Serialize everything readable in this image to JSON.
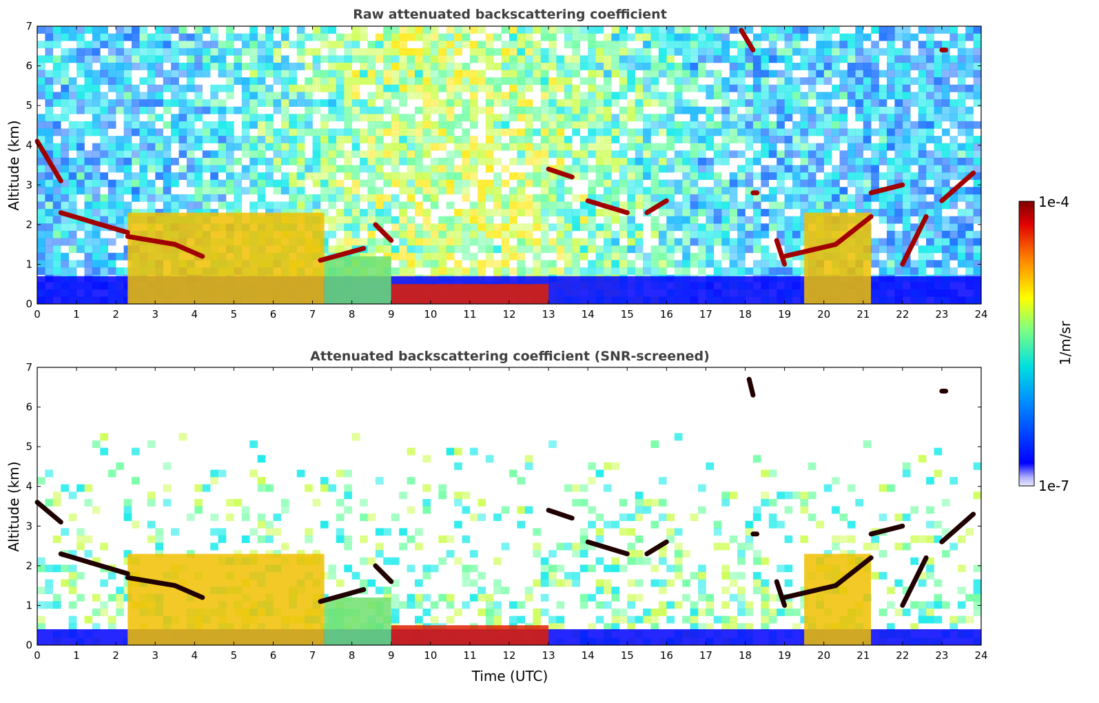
{
  "chart_data": [
    {
      "type": "heatmap",
      "title": "Raw attenuated backscattering coefficient",
      "xlabel": "",
      "ylabel": "Altitude (km)",
      "xlim": [
        0,
        24
      ],
      "ylim": [
        0,
        7
      ],
      "x_ticks": [
        "0",
        "1",
        "2",
        "3",
        "4",
        "5",
        "6",
        "7",
        "8",
        "9",
        "10",
        "11",
        "12",
        "13",
        "14",
        "15",
        "16",
        "17",
        "18",
        "19",
        "20",
        "21",
        "22",
        "23",
        "24"
      ],
      "y_ticks": [
        "0",
        "1",
        "2",
        "3",
        "4",
        "5",
        "6",
        "7"
      ],
      "colorscale": "jet",
      "noise_level": "high",
      "noise_floor_top_km": 0.7,
      "layers": [
        {
          "name": "aerosol",
          "x": [
            2.3,
            7.3
          ],
          "y": [
            0,
            2.3
          ],
          "intensity": "high"
        },
        {
          "name": "aerosol",
          "x": [
            7.3,
            9.0
          ],
          "y": [
            0,
            1.2
          ],
          "intensity": "medium"
        },
        {
          "name": "cloud-base",
          "x": [
            9.0,
            13.0
          ],
          "y": [
            0,
            0.5
          ],
          "intensity": "very high"
        },
        {
          "name": "aerosol",
          "x": [
            19.5,
            21.2
          ],
          "y": [
            0,
            2.3
          ],
          "intensity": "high"
        }
      ],
      "cloud_segments": [
        {
          "x": [
            0.0,
            0.6
          ],
          "y": [
            4.1,
            3.1
          ]
        },
        {
          "x": [
            0.6,
            2.3
          ],
          "y": [
            2.3,
            1.8
          ]
        },
        {
          "x": [
            2.3,
            3.5
          ],
          "y": [
            1.7,
            1.5
          ]
        },
        {
          "x": [
            3.5,
            4.2
          ],
          "y": [
            1.5,
            1.2
          ]
        },
        {
          "x": [
            7.2,
            8.3
          ],
          "y": [
            1.1,
            1.4
          ]
        },
        {
          "x": [
            8.6,
            9.0
          ],
          "y": [
            2.0,
            1.6
          ]
        },
        {
          "x": [
            13.0,
            13.6
          ],
          "y": [
            3.4,
            3.2
          ]
        },
        {
          "x": [
            14.0,
            15.0
          ],
          "y": [
            2.6,
            2.3
          ]
        },
        {
          "x": [
            15.5,
            16.0
          ],
          "y": [
            2.3,
            2.6
          ]
        },
        {
          "x": [
            18.2,
            18.3
          ],
          "y": [
            2.8,
            2.8
          ]
        },
        {
          "x": [
            18.8,
            19.0
          ],
          "y": [
            1.6,
            1.0
          ]
        },
        {
          "x": [
            19.0,
            20.3
          ],
          "y": [
            1.2,
            1.5
          ]
        },
        {
          "x": [
            20.3,
            21.2
          ],
          "y": [
            1.5,
            2.2
          ]
        },
        {
          "x": [
            21.2,
            22.0
          ],
          "y": [
            2.8,
            3.0
          ]
        },
        {
          "x": [
            22.0,
            22.6
          ],
          "y": [
            1.0,
            2.2
          ]
        },
        {
          "x": [
            23.0,
            23.8
          ],
          "y": [
            2.6,
            3.3
          ]
        },
        {
          "x": [
            17.9,
            18.2
          ],
          "y": [
            6.9,
            6.4
          ]
        },
        {
          "x": [
            23.0,
            23.1
          ],
          "y": [
            6.4,
            6.4
          ]
        }
      ]
    },
    {
      "type": "heatmap",
      "title": "Attenuated backscattering coefficient (SNR-screened)",
      "xlabel": "Time (UTC)",
      "ylabel": "Altitude (km)",
      "xlim": [
        0,
        24
      ],
      "ylim": [
        0,
        7
      ],
      "x_ticks": [
        "0",
        "1",
        "2",
        "3",
        "4",
        "5",
        "6",
        "7",
        "8",
        "9",
        "10",
        "11",
        "12",
        "13",
        "14",
        "15",
        "16",
        "17",
        "18",
        "19",
        "20",
        "21",
        "22",
        "23",
        "24"
      ],
      "y_ticks": [
        "0",
        "1",
        "2",
        "3",
        "4",
        "5",
        "6",
        "7"
      ],
      "colorscale": "jet",
      "noise_level": "screened",
      "noise_floor_top_km": 0.4,
      "layers": [
        {
          "name": "aerosol",
          "x": [
            2.3,
            7.3
          ],
          "y": [
            0,
            2.3
          ],
          "intensity": "high"
        },
        {
          "name": "aerosol",
          "x": [
            7.3,
            9.0
          ],
          "y": [
            0,
            1.2
          ],
          "intensity": "medium"
        },
        {
          "name": "cloud-base",
          "x": [
            9.0,
            13.0
          ],
          "y": [
            0,
            0.5
          ],
          "intensity": "very high"
        },
        {
          "name": "aerosol",
          "x": [
            19.5,
            21.2
          ],
          "y": [
            0,
            2.3
          ],
          "intensity": "high"
        }
      ],
      "cloud_segments": [
        {
          "x": [
            0.0,
            0.6
          ],
          "y": [
            3.6,
            3.1
          ]
        },
        {
          "x": [
            0.6,
            2.3
          ],
          "y": [
            2.3,
            1.8
          ]
        },
        {
          "x": [
            2.3,
            3.5
          ],
          "y": [
            1.7,
            1.5
          ]
        },
        {
          "x": [
            3.5,
            4.2
          ],
          "y": [
            1.5,
            1.2
          ]
        },
        {
          "x": [
            7.2,
            8.3
          ],
          "y": [
            1.1,
            1.4
          ]
        },
        {
          "x": [
            8.6,
            9.0
          ],
          "y": [
            2.0,
            1.6
          ]
        },
        {
          "x": [
            13.0,
            13.6
          ],
          "y": [
            3.4,
            3.2
          ]
        },
        {
          "x": [
            14.0,
            15.0
          ],
          "y": [
            2.6,
            2.3
          ]
        },
        {
          "x": [
            15.5,
            16.0
          ],
          "y": [
            2.3,
            2.6
          ]
        },
        {
          "x": [
            18.2,
            18.3
          ],
          "y": [
            2.8,
            2.8
          ]
        },
        {
          "x": [
            18.8,
            19.0
          ],
          "y": [
            1.6,
            1.0
          ]
        },
        {
          "x": [
            19.0,
            20.3
          ],
          "y": [
            1.2,
            1.5
          ]
        },
        {
          "x": [
            20.3,
            21.2
          ],
          "y": [
            1.5,
            2.2
          ]
        },
        {
          "x": [
            21.2,
            22.0
          ],
          "y": [
            2.8,
            3.0
          ]
        },
        {
          "x": [
            22.0,
            22.6
          ],
          "y": [
            1.0,
            2.2
          ]
        },
        {
          "x": [
            23.0,
            23.8
          ],
          "y": [
            2.6,
            3.3
          ]
        },
        {
          "x": [
            18.1,
            18.2
          ],
          "y": [
            6.7,
            6.3
          ]
        },
        {
          "x": [
            23.0,
            23.1
          ],
          "y": [
            6.4,
            6.4
          ]
        }
      ]
    }
  ],
  "colorbar": {
    "label": "1/m/sr",
    "max_label": "1e-4",
    "min_label": "1e-7",
    "colors": [
      "#00007f",
      "#0000ff",
      "#007fff",
      "#00ffff",
      "#7fff7f",
      "#ffff00",
      "#ff7f00",
      "#ff0000",
      "#7f0000"
    ]
  }
}
